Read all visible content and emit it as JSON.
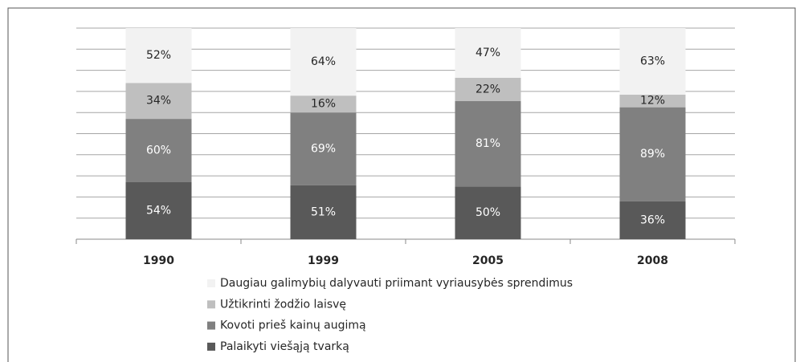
{
  "chart_data": {
    "type": "bar",
    "stacking": "percent",
    "categories": [
      "1990",
      "1999",
      "2005",
      "2008"
    ],
    "series": [
      {
        "name": "Palaikyti viešąją tvarką",
        "color": "#595959",
        "label_color": "#ffffff",
        "values": [
          54,
          51,
          50,
          36
        ],
        "value_labels": [
          "54%",
          "51%",
          "50%",
          "36%"
        ]
      },
      {
        "name": "Kovoti prieš kainų augimą",
        "color": "#808080",
        "label_color": "#ffffff",
        "values": [
          60,
          69,
          81,
          89
        ],
        "value_labels": [
          "60%",
          "69%",
          "81%",
          "89%"
        ]
      },
      {
        "name": "Užtikrinti žodžio laisvę",
        "color": "#bfbfbf",
        "label_color": "#262626",
        "values": [
          34,
          16,
          22,
          12
        ],
        "value_labels": [
          "34%",
          "16%",
          "22%",
          "12%"
        ]
      },
      {
        "name": "Daugiau galimybių dalyvauti priimant vyriausybės sprendimus",
        "color": "#f2f2f2",
        "label_color": "#262626",
        "values": [
          52,
          64,
          47,
          63
        ],
        "value_labels": [
          "52%",
          "64%",
          "47%",
          "63%"
        ]
      }
    ],
    "ylim": [
      0,
      100
    ],
    "yticks": [
      0,
      10,
      20,
      30,
      40,
      50,
      60,
      70,
      80,
      90,
      100
    ],
    "show_y_tick_labels": false,
    "grid": true,
    "legend": "bottom",
    "legend_order": "reverse"
  }
}
